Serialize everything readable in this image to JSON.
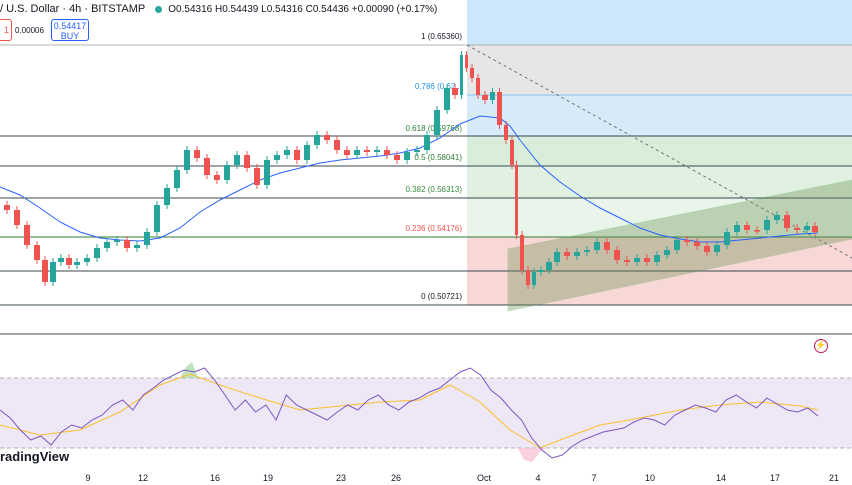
{
  "header": {
    "symbol": "/ U.S. Dollar · 4h · BITSTAMP",
    "ohlc": "O0.54316 H0.54439 L0.54316 C0.54436 +0.00090 (+0.17%)"
  },
  "trade": {
    "sell_price": "1",
    "spread": "0.00006",
    "buy_price": "0.54417",
    "buy_label": "BUY"
  },
  "fib_levels": [
    {
      "label": "1 (0.65360)",
      "color": "#131722"
    },
    {
      "label": "0.786 (0.62...",
      "color": "#2196f3"
    },
    {
      "label": "0.618 (0.59768)",
      "color": "#2e7d32"
    },
    {
      "label": "0.5 (0.58041)",
      "color": "#2e7d32"
    },
    {
      "label": "0.382 (0.56313)",
      "color": "#388e3c"
    },
    {
      "label": "0.236 (0.54176)",
      "color": "#ef5350"
    },
    {
      "label": "0 (0.50721)",
      "color": "#131722"
    }
  ],
  "x_axis": [
    "9",
    "12",
    "16",
    "19",
    "23",
    "26",
    "Oct",
    "4",
    "7",
    "10",
    "14",
    "17",
    "21"
  ],
  "logo": "radingView",
  "colors": {
    "up": "#26a69a",
    "down": "#ef5350",
    "ma": "#2962ff",
    "rsi": "#7e57c2",
    "rsi_ma": "#fbc02d"
  }
}
